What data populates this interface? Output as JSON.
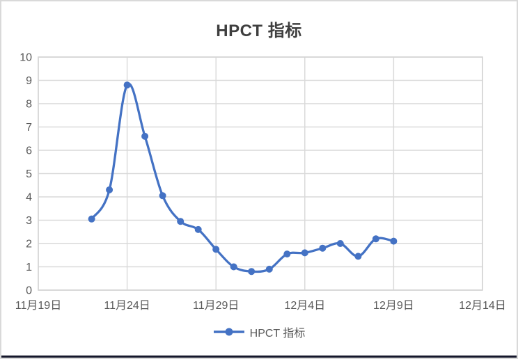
{
  "window": {
    "background": "#ffffff",
    "border_color": "#d9d9d9",
    "bottom_bar_color": "#15172b"
  },
  "chart_data": {
    "type": "line",
    "title": "HPCT 指标",
    "series": [
      {
        "name": "HPCT 指标",
        "color": "#4472C4",
        "smooth": true,
        "x_dates": [
          "11月22日",
          "11月23日",
          "11月24日",
          "11月25日",
          "11月26日",
          "11月27日",
          "11月28日",
          "11月29日",
          "11月30日",
          "12月1日",
          "12月2日",
          "12月3日",
          "12月4日",
          "12月5日",
          "12月6日",
          "12月7日",
          "12月8日",
          "12月9日"
        ],
        "x_day_offsets": [
          3,
          4,
          5,
          6,
          7,
          8,
          9,
          10,
          11,
          12,
          13,
          14,
          15,
          16,
          17,
          18,
          19,
          20
        ],
        "values": [
          3.05,
          4.3,
          8.8,
          6.6,
          4.05,
          2.95,
          2.6,
          1.75,
          1.0,
          0.8,
          0.9,
          1.55,
          1.6,
          1.8,
          2.0,
          1.45,
          2.2,
          2.1
        ]
      }
    ],
    "x_axis": {
      "tick_labels": [
        "11月19日",
        "11月24日",
        "11月29日",
        "12月4日",
        "12月9日",
        "12月14日"
      ],
      "tick_day_offsets": [
        0,
        5,
        10,
        15,
        20,
        25
      ],
      "total_days": 25
    },
    "y_axis": {
      "min": 0,
      "max": 10,
      "step": 1,
      "tick_labels": [
        "0",
        "1",
        "2",
        "3",
        "4",
        "5",
        "6",
        "7",
        "8",
        "9",
        "10"
      ]
    },
    "legend": {
      "label": "HPCT 指标",
      "position": "bottom",
      "marker": "line-circle"
    },
    "grid": true,
    "colors": {
      "line": "#4472C4",
      "gridline": "#D9D9D9",
      "plot_border": "#D4D4D4",
      "axis_label": "#595959",
      "title": "#3F3F3F"
    }
  }
}
